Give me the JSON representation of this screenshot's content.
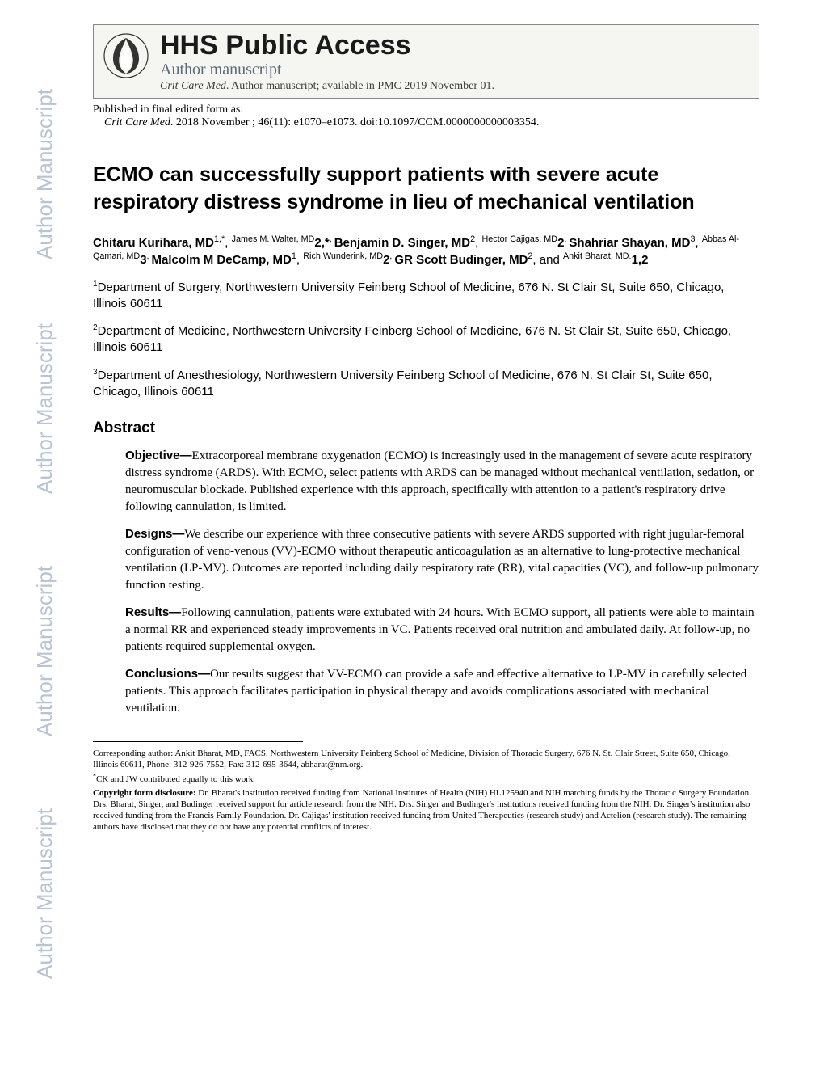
{
  "colors": {
    "background": "#ffffff",
    "text": "#000000",
    "watermark": "#b8c4d4",
    "header_bg": "#f5f5f2",
    "header_border": "#888888",
    "subheader_text": "#5a6a7a"
  },
  "fonts": {
    "serif": "Georgia, 'Times New Roman', serif",
    "sans": "Arial, Helvetica, sans-serif",
    "hhs_title_size": 34,
    "article_title_size": 25,
    "body_size": 15,
    "footnote_size": 11
  },
  "watermark": "Author Manuscript",
  "header": {
    "hhs_title": "HHS Public Access",
    "author_manuscript": "Author manuscript",
    "journal_name": "Crit Care Med",
    "avail_text": ". Author manuscript; available in PMC 2019 November 01."
  },
  "pubinfo": {
    "line1": "Published in final edited form as:",
    "journal": "Crit Care Med",
    "citation_rest": ". 2018 November ; 46(11): e1070–e1073. doi:10.1097/CCM.0000000000003354."
  },
  "title": "ECMO can successfully support patients with severe acute respiratory distress syndrome in lieu of mechanical ventilation",
  "authors_html": "Chitaru Kurihara, MD|1,*|, |James M. Walter, MD|2,*|, |Benjamin D. Singer, MD|2|, |Hector Cajigas, MD|2|, |Shahriar Shayan, MD|3|, |Abbas Al-Qamari, MD|3|, |Malcolm M DeCamp, MD|1|, |Rich Wunderink, MD|2|, |GR Scott Budinger, MD|2|, and |Ankit Bharat, MD.|1,2",
  "affiliations": {
    "a1": {
      "sup": "1",
      "text": "Department of Surgery, Northwestern University Feinberg School of Medicine, 676 N. St Clair St, Suite 650, Chicago, Illinois 60611"
    },
    "a2": {
      "sup": "2",
      "text": "Department of Medicine, Northwestern University Feinberg School of Medicine, 676 N. St Clair St, Suite 650, Chicago, Illinois 60611"
    },
    "a3": {
      "sup": "3",
      "text": "Department of Anesthesiology, Northwestern University Feinberg School of Medicine, 676 N. St Clair St, Suite 650, Chicago, Illinois 60611"
    }
  },
  "abstract_heading": "Abstract",
  "abstract": {
    "objective": {
      "label": "Objective—",
      "text": "Extracorporeal membrane oxygenation (ECMO) is increasingly used in the management of severe acute respiratory distress syndrome (ARDS). With ECMO, select patients with ARDS can be managed without mechanical ventilation, sedation, or neuromuscular blockade. Published experience with this approach, specifically with attention to a patient's respiratory drive following cannulation, is limited."
    },
    "designs": {
      "label": "Designs—",
      "text": "We describe our experience with three consecutive patients with severe ARDS supported with right jugular-femoral configuration of veno-venous (VV)-ECMO without therapeutic anticoagulation as an alternative to lung-protective mechanical ventilation (LP-MV). Outcomes are reported including daily respiratory rate (RR), vital capacities (VC), and follow-up pulmonary function testing."
    },
    "results": {
      "label": "Results—",
      "text": "Following cannulation, patients were extubated with 24 hours. With ECMO support, all patients were able to maintain a normal RR and experienced steady improvements in VC. Patients received oral nutrition and ambulated daily. At follow-up, no patients required supplemental oxygen."
    },
    "conclusions": {
      "label": "Conclusions—",
      "text": "Our results suggest that VV-ECMO can provide a safe and effective alternative to LP-MV in carefully selected patients. This approach facilitates participation in physical therapy and avoids complications associated with mechanical ventilation."
    }
  },
  "footnotes": {
    "corresponding": "Corresponding author: Ankit Bharat, MD, FACS, Northwestern University Feinberg School of Medicine, Division of Thoracic Surgery, 676 N. St. Clair Street, Suite 650, Chicago, Illinois 60611, Phone: 312-926-7552, Fax: 312-695-3644, abharat@nm.org.",
    "equal_sup": "*",
    "equal": "CK and JW contributed equally to this work",
    "copyright_label": "Copyright form disclosure:",
    "copyright": " Dr. Bharat's institution received funding from National Institutes of Health (NIH) HL125940 and NIH matching funds by the Thoracic Surgery Foundation. Drs. Bharat, Singer, and Budinger received support for article research from the NIH. Drs. Singer and Budinger's institutions received funding from the NIH. Dr. Singer's institution also received funding from the Francis Family Foundation. Dr. Cajigas' institution received funding from United Therapeutics (research study) and Actelion (research study). The remaining authors have disclosed that they do not have any potential conflicts of interest."
  }
}
